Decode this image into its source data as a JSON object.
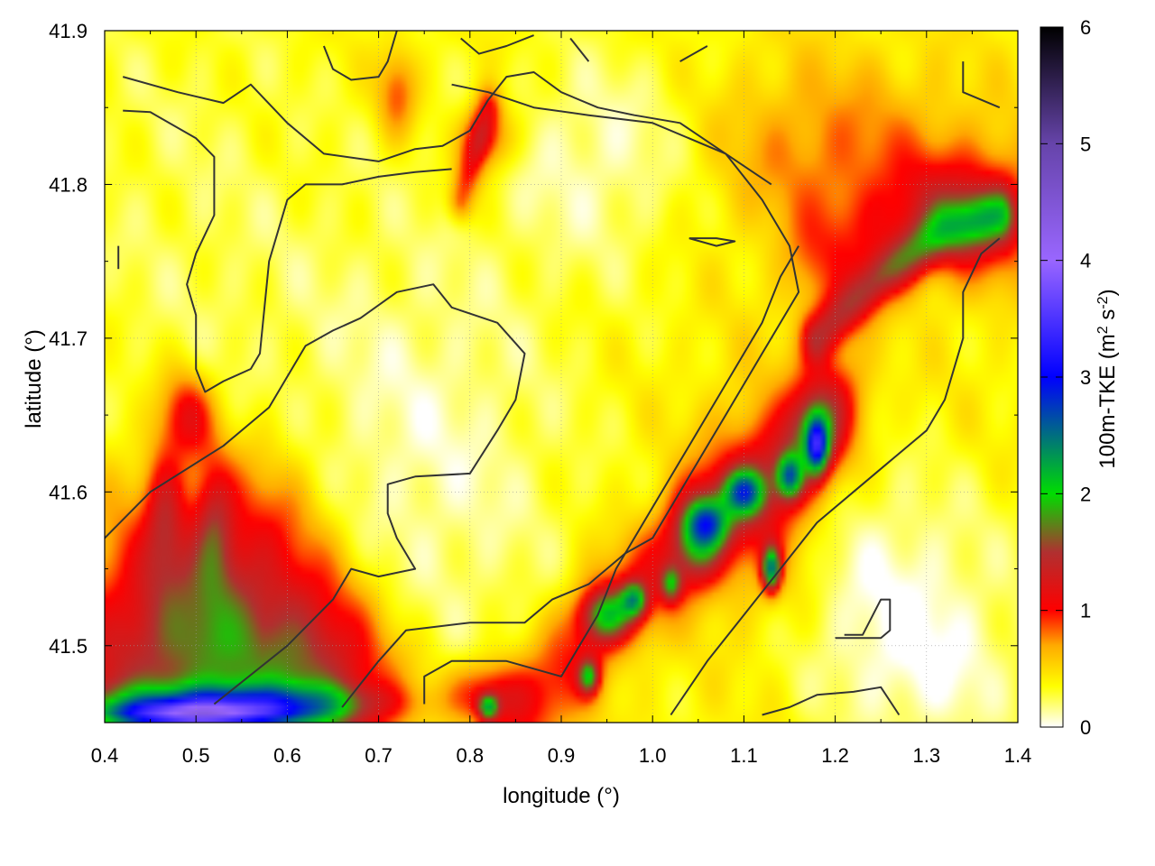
{
  "chart_data": {
    "type": "heatmap",
    "title": "",
    "xlabel": "longitude (°)",
    "ylabel": "latitude (°)",
    "colorbar_label_parts": [
      "100m-TKE (m",
      "2",
      " s",
      "-2",
      ")"
    ],
    "xlim": [
      0.4,
      1.4
    ],
    "ylim": [
      41.45,
      41.9
    ],
    "x_ticks": [
      0.4,
      0.5,
      0.6,
      0.7,
      0.8,
      0.9,
      1.0,
      1.1,
      1.2,
      1.3,
      1.4
    ],
    "x_tick_labels": [
      "0.4",
      "0.5",
      "0.6",
      "0.7",
      "0.8",
      "0.9",
      "1.0",
      "1.1",
      "1.2",
      "1.3",
      "1.4"
    ],
    "y_ticks": [
      41.5,
      41.6,
      41.7,
      41.8,
      41.9
    ],
    "y_tick_labels": [
      "41.5",
      "41.6",
      "41.7",
      "41.8",
      "41.9"
    ],
    "colorbar_range": [
      0,
      6
    ],
    "colorbar_ticks": [
      0,
      1,
      2,
      3,
      4,
      5,
      6
    ],
    "colorbar_tick_labels": [
      "0",
      "1",
      "2",
      "3",
      "4",
      "5",
      "6"
    ],
    "colormap_stops": [
      {
        "value": 0.0,
        "color": "#ffffff"
      },
      {
        "value": 0.35,
        "color": "#ffff00"
      },
      {
        "value": 0.7,
        "color": "#ffaa00"
      },
      {
        "value": 1.0,
        "color": "#ff0000"
      },
      {
        "value": 1.5,
        "color": "#b03030"
      },
      {
        "value": 2.0,
        "color": "#00dd00"
      },
      {
        "value": 3.0,
        "color": "#0000ff"
      },
      {
        "value": 4.0,
        "color": "#9966ff"
      },
      {
        "value": 5.0,
        "color": "#6644aa"
      },
      {
        "value": 6.0,
        "color": "#000000"
      }
    ],
    "grid": true,
    "contour_color": "#333333",
    "field_features": [
      {
        "kind": "base",
        "value": 0.4
      },
      {
        "kind": "blob",
        "lon": 0.48,
        "lat": 41.78,
        "sx": 0.12,
        "sy": 0.14,
        "value": -0.15
      },
      {
        "kind": "blob",
        "lon": 0.75,
        "lat": 41.62,
        "sx": 0.12,
        "sy": 0.12,
        "value": -0.3
      },
      {
        "kind": "blob",
        "lon": 0.95,
        "lat": 41.82,
        "sx": 0.08,
        "sy": 0.05,
        "value": -0.3
      },
      {
        "kind": "blob",
        "lon": 1.25,
        "lat": 41.55,
        "sx": 0.1,
        "sy": 0.05,
        "value": -0.3
      },
      {
        "kind": "blob",
        "lon": 1.3,
        "lat": 41.48,
        "sx": 0.08,
        "sy": 0.04,
        "value": -0.3
      },
      {
        "kind": "blob",
        "lon": 1.2,
        "lat": 41.82,
        "sx": 0.1,
        "sy": 0.04,
        "value": 0.4
      },
      {
        "kind": "blob",
        "lon": 1.35,
        "lat": 41.78,
        "sx": 0.05,
        "sy": 0.03,
        "value": 0.5
      },
      {
        "kind": "blob",
        "lon": 0.48,
        "lat": 41.52,
        "sx": 0.08,
        "sy": 0.06,
        "value": 0.7
      },
      {
        "kind": "blob",
        "lon": 0.6,
        "lat": 41.48,
        "sx": 0.07,
        "sy": 0.04,
        "value": 0.8
      },
      {
        "kind": "blob",
        "lon": 0.49,
        "lat": 41.65,
        "sx": 0.02,
        "sy": 0.02,
        "value": 0.7
      },
      {
        "kind": "blob",
        "lon": 0.465,
        "lat": 41.59,
        "sx": 0.015,
        "sy": 0.03,
        "value": 0.6
      },
      {
        "kind": "blob",
        "lon": 0.52,
        "lat": 41.58,
        "sx": 0.015,
        "sy": 0.03,
        "value": 0.6
      },
      {
        "kind": "blob",
        "lon": 0.82,
        "lat": 41.47,
        "sx": 0.03,
        "sy": 0.015,
        "value": 0.7
      },
      {
        "kind": "blob",
        "lon": 0.82,
        "lat": 41.83,
        "sx": 0.02,
        "sy": 0.015,
        "value": 0.6
      },
      {
        "kind": "blob",
        "lon": 0.72,
        "lat": 41.86,
        "sx": 0.015,
        "sy": 0.02,
        "value": 0.5
      },
      {
        "kind": "blob",
        "lon": 1.12,
        "lat": 41.59,
        "sx": 0.05,
        "sy": 0.05,
        "value": 0.5
      },
      {
        "kind": "blob",
        "lon": 1.05,
        "lat": 41.57,
        "sx": 0.02,
        "sy": 0.02,
        "value": 1.0
      },
      {
        "kind": "blob",
        "lon": 1.18,
        "lat": 41.64,
        "sx": 0.02,
        "sy": 0.02,
        "value": 0.8
      },
      {
        "kind": "blob",
        "lon": 0.54,
        "lat": 41.463,
        "sx": 0.1,
        "sy": 0.009,
        "value": 1.4
      },
      {
        "kind": "blob",
        "lon": 0.5,
        "lat": 41.455,
        "sx": 0.07,
        "sy": 0.006,
        "value": 2.0
      },
      {
        "kind": "blob",
        "lon": 0.82,
        "lat": 41.46,
        "sx": 0.008,
        "sy": 0.006,
        "value": 1.3
      },
      {
        "kind": "blob",
        "lon": 0.95,
        "lat": 41.52,
        "sx": 0.02,
        "sy": 0.012,
        "value": 1.2
      },
      {
        "kind": "blob",
        "lon": 0.98,
        "lat": 41.53,
        "sx": 0.01,
        "sy": 0.008,
        "value": 1.2
      },
      {
        "kind": "blob",
        "lon": 0.93,
        "lat": 41.48,
        "sx": 0.008,
        "sy": 0.008,
        "value": 1.2
      },
      {
        "kind": "blob",
        "lon": 1.02,
        "lat": 41.54,
        "sx": 0.008,
        "sy": 0.008,
        "value": 1.0
      },
      {
        "kind": "blob",
        "lon": 1.06,
        "lat": 41.58,
        "sx": 0.015,
        "sy": 0.01,
        "value": 1.0
      },
      {
        "kind": "blob",
        "lon": 1.1,
        "lat": 41.6,
        "sx": 0.015,
        "sy": 0.01,
        "value": 1.4
      },
      {
        "kind": "blob",
        "lon": 1.13,
        "lat": 41.55,
        "sx": 0.007,
        "sy": 0.01,
        "value": 1.8
      },
      {
        "kind": "blob",
        "lon": 1.15,
        "lat": 41.61,
        "sx": 0.01,
        "sy": 0.01,
        "value": 1.4
      },
      {
        "kind": "blob",
        "lon": 1.18,
        "lat": 41.63,
        "sx": 0.008,
        "sy": 0.012,
        "value": 1.7
      },
      {
        "kind": "ridge",
        "points": [
          [
            0.41,
            41.46
          ],
          [
            0.5,
            41.5
          ],
          [
            0.58,
            41.56
          ],
          [
            0.66,
            41.46
          ]
        ],
        "width": 0.05,
        "value": 0.5
      },
      {
        "kind": "ridge",
        "points": [
          [
            0.79,
            41.79
          ],
          [
            0.82,
            41.85
          ]
        ],
        "width": 0.01,
        "value": 0.6
      },
      {
        "kind": "ridge",
        "points": [
          [
            0.86,
            41.45
          ],
          [
            0.95,
            41.52
          ],
          [
            1.06,
            41.58
          ],
          [
            1.15,
            41.62
          ],
          [
            1.2,
            41.66
          ]
        ],
        "width": 0.025,
        "value": 0.6
      },
      {
        "kind": "ridge",
        "points": [
          [
            1.18,
            41.7
          ],
          [
            1.25,
            41.74
          ],
          [
            1.32,
            41.77
          ],
          [
            1.38,
            41.78
          ]
        ],
        "width": 0.012,
        "value": 0.9
      },
      {
        "kind": "ridge",
        "points": [
          [
            1.18,
            41.75
          ],
          [
            1.3,
            41.78
          ],
          [
            1.38,
            41.78
          ]
        ],
        "width": 0.025,
        "value": 0.4
      }
    ],
    "contours": [
      [
        [
          0.52,
          41.462
        ],
        [
          0.6,
          41.5
        ],
        [
          0.65,
          41.53
        ],
        [
          0.67,
          41.55
        ],
        [
          0.7,
          41.545
        ],
        [
          0.74,
          41.55
        ],
        [
          0.72,
          41.57
        ],
        [
          0.71,
          41.586
        ],
        [
          0.71,
          41.605
        ],
        [
          0.74,
          41.61
        ],
        [
          0.8,
          41.612
        ],
        [
          0.83,
          41.64
        ],
        [
          0.85,
          41.66
        ],
        [
          0.86,
          41.69
        ],
        [
          0.83,
          41.71
        ],
        [
          0.78,
          41.72
        ],
        [
          0.76,
          41.735
        ],
        [
          0.72,
          41.73
        ],
        [
          0.68,
          41.713
        ],
        [
          0.65,
          41.705
        ],
        [
          0.62,
          41.695
        ],
        [
          0.58,
          41.655
        ],
        [
          0.53,
          41.63
        ],
        [
          0.45,
          41.6
        ],
        [
          0.4,
          41.57
        ]
      ],
      [
        [
          0.66,
          41.46
        ],
        [
          0.7,
          41.49
        ],
        [
          0.73,
          41.51
        ],
        [
          0.8,
          41.515
        ],
        [
          0.86,
          41.515
        ],
        [
          0.89,
          41.53
        ],
        [
          0.93,
          41.54
        ],
        [
          0.97,
          41.56
        ],
        [
          1.0,
          41.57
        ],
        [
          1.05,
          41.62
        ],
        [
          1.08,
          41.65
        ],
        [
          1.1,
          41.67
        ],
        [
          1.12,
          41.69
        ],
        [
          1.14,
          41.71
        ],
        [
          1.16,
          41.73
        ],
        [
          1.15,
          41.76
        ],
        [
          1.12,
          41.79
        ],
        [
          1.08,
          41.82
        ],
        [
          1.0,
          41.84
        ],
        [
          0.93,
          41.845
        ],
        [
          0.87,
          41.85
        ],
        [
          0.82,
          41.86
        ],
        [
          0.78,
          41.865
        ]
      ],
      [
        [
          0.75,
          41.462
        ],
        [
          0.75,
          41.48
        ],
        [
          0.78,
          41.49
        ],
        [
          0.84,
          41.49
        ],
        [
          0.9,
          41.48
        ],
        [
          0.92,
          41.5
        ],
        [
          0.94,
          41.52
        ],
        [
          0.96,
          41.55
        ],
        [
          1.0,
          41.59
        ],
        [
          1.04,
          41.63
        ],
        [
          1.08,
          41.67
        ],
        [
          1.12,
          41.71
        ],
        [
          1.14,
          41.74
        ],
        [
          1.16,
          41.76
        ]
      ],
      [
        [
          1.02,
          41.455
        ],
        [
          1.06,
          41.49
        ],
        [
          1.1,
          41.52
        ],
        [
          1.14,
          41.55
        ],
        [
          1.18,
          41.58
        ],
        [
          1.22,
          41.6
        ],
        [
          1.26,
          41.62
        ],
        [
          1.3,
          41.64
        ],
        [
          1.32,
          41.66
        ],
        [
          1.34,
          41.7
        ],
        [
          1.34,
          41.73
        ],
        [
          1.36,
          41.755
        ],
        [
          1.38,
          41.765
        ]
      ],
      [
        [
          0.42,
          41.87
        ],
        [
          0.48,
          41.86
        ],
        [
          0.53,
          41.853
        ],
        [
          0.56,
          41.865
        ],
        [
          0.6,
          41.84
        ],
        [
          0.64,
          41.82
        ],
        [
          0.7,
          41.815
        ],
        [
          0.74,
          41.823
        ],
        [
          0.77,
          41.825
        ],
        [
          0.8,
          41.835
        ],
        [
          0.82,
          41.855
        ],
        [
          0.84,
          41.87
        ],
        [
          0.87,
          41.873
        ],
        [
          0.9,
          41.86
        ],
        [
          0.94,
          41.85
        ],
        [
          0.98,
          41.845
        ],
        [
          1.03,
          41.84
        ],
        [
          1.08,
          41.82
        ],
        [
          1.13,
          41.8
        ]
      ],
      [
        [
          0.42,
          41.848
        ],
        [
          0.45,
          41.847
        ],
        [
          0.5,
          41.83
        ],
        [
          0.52,
          41.818
        ],
        [
          0.52,
          41.8
        ],
        [
          0.52,
          41.78
        ],
        [
          0.5,
          41.755
        ],
        [
          0.49,
          41.735
        ],
        [
          0.5,
          41.715
        ],
        [
          0.5,
          41.69
        ],
        [
          0.5,
          41.68
        ],
        [
          0.51,
          41.665
        ],
        [
          0.53,
          41.672
        ],
        [
          0.56,
          41.68
        ],
        [
          0.57,
          41.69
        ],
        [
          0.58,
          41.75
        ],
        [
          0.6,
          41.79
        ],
        [
          0.62,
          41.8
        ],
        [
          0.66,
          41.8
        ],
        [
          0.7,
          41.805
        ],
        [
          0.74,
          41.808
        ],
        [
          0.78,
          41.81
        ]
      ],
      [
        [
          0.64,
          41.89
        ],
        [
          0.65,
          41.875
        ],
        [
          0.67,
          41.868
        ],
        [
          0.7,
          41.87
        ],
        [
          0.71,
          41.88
        ],
        [
          0.72,
          41.9
        ]
      ],
      [
        [
          0.79,
          41.895
        ],
        [
          0.81,
          41.885
        ],
        [
          0.84,
          41.89
        ],
        [
          0.87,
          41.897
        ]
      ],
      [
        [
          0.91,
          41.895
        ],
        [
          0.93,
          41.88
        ]
      ],
      [
        [
          1.03,
          41.88
        ],
        [
          1.06,
          41.89
        ]
      ],
      [
        [
          1.34,
          41.88
        ],
        [
          1.34,
          41.86
        ],
        [
          1.38,
          41.85
        ]
      ],
      [
        [
          0.415,
          41.745
        ],
        [
          0.415,
          41.76
        ]
      ],
      [
        [
          1.12,
          41.455
        ],
        [
          1.15,
          41.46
        ],
        [
          1.18,
          41.468
        ],
        [
          1.22,
          41.47
        ],
        [
          1.25,
          41.473
        ],
        [
          1.27,
          41.455
        ]
      ],
      [
        [
          1.2,
          41.505
        ],
        [
          1.25,
          41.505
        ],
        [
          1.26,
          41.51
        ],
        [
          1.26,
          41.53
        ],
        [
          1.25,
          41.53
        ],
        [
          1.23,
          41.507
        ],
        [
          1.21,
          41.507
        ]
      ],
      [
        [
          1.04,
          41.765
        ],
        [
          1.07,
          41.76
        ],
        [
          1.09,
          41.763
        ],
        [
          1.07,
          41.765
        ],
        [
          1.04,
          41.765
        ]
      ]
    ]
  }
}
